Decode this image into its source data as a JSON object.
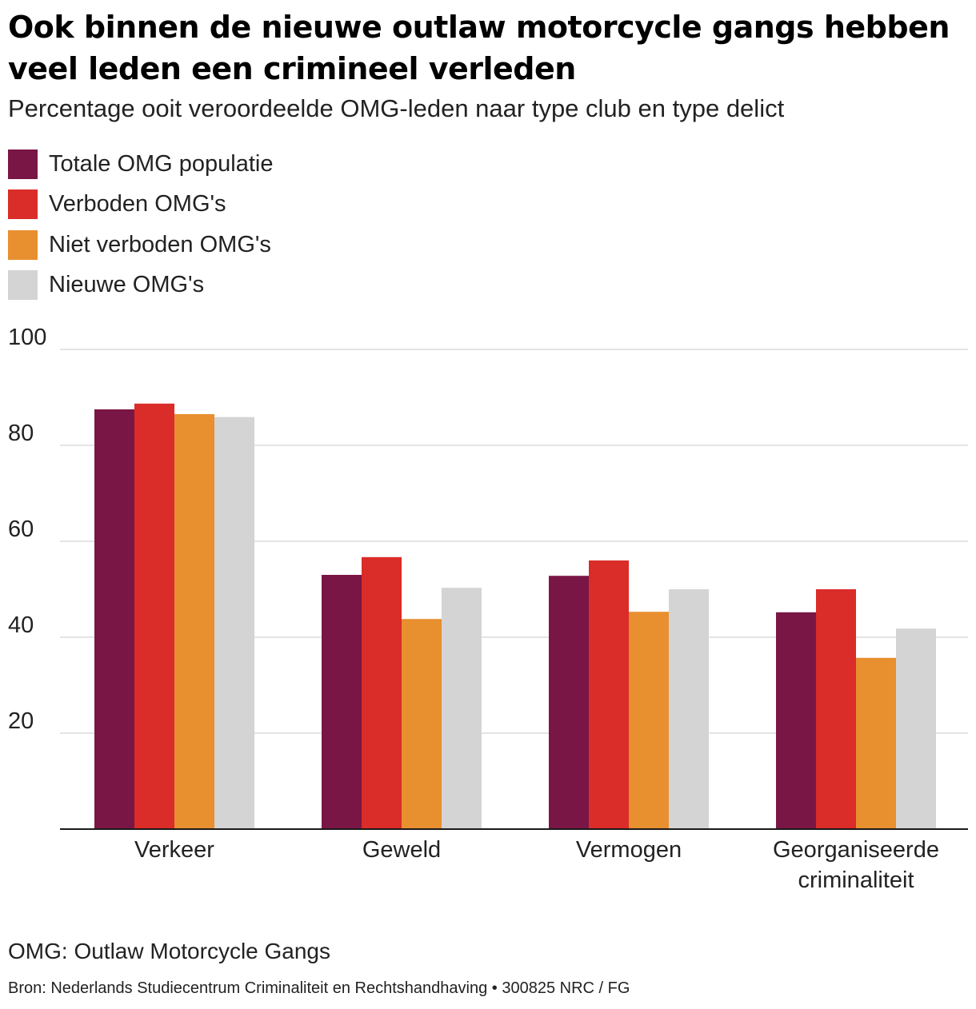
{
  "header": {
    "title": "Ook binnen de nieuwe outlaw motorcycle gangs hebben veel leden een crimineel verleden",
    "subtitle": "Percentage ooit veroordeelde OMG-leden naar type club en type delict"
  },
  "legend": {
    "items": [
      {
        "label": "Totale OMG populatie",
        "color": "#7a1645"
      },
      {
        "label": "Verboden OMG's",
        "color": "#da2c28"
      },
      {
        "label": "Niet verboden OMG's",
        "color": "#e88f2f"
      },
      {
        "label": "Nieuwe OMG's",
        "color": "#d4d4d4"
      }
    ]
  },
  "chart_data": {
    "type": "bar",
    "categories": [
      [
        "Verkeer"
      ],
      [
        "Geweld"
      ],
      [
        "Vermogen"
      ],
      [
        "Georganiseerde",
        "criminaliteit"
      ]
    ],
    "series": [
      {
        "name": "Totale OMG populatie",
        "color": "#7a1645",
        "values": [
          87.5,
          53,
          52.8,
          45.2
        ]
      },
      {
        "name": "Verboden OMG's",
        "color": "#da2c28",
        "values": [
          88.7,
          56.7,
          56,
          50
        ]
      },
      {
        "name": "Niet verboden OMG's",
        "color": "#e88f2f",
        "values": [
          86.5,
          43.8,
          45.3,
          35.7
        ]
      },
      {
        "name": "Nieuwe OMG's",
        "color": "#d4d4d4",
        "values": [
          85.9,
          50.3,
          50,
          41.8
        ]
      }
    ],
    "yticks": [
      20,
      40,
      60,
      80,
      100
    ],
    "ylim": [
      0,
      100
    ],
    "grid": true,
    "legend_position": "top-left",
    "xlabel": "",
    "ylabel": ""
  },
  "footer": {
    "note": "OMG: Outlaw Motorcycle Gangs",
    "source": "Bron: Nederlands Studiecentrum Criminaliteit en Rechtshandhaving  •  300825 NRC / FG"
  }
}
